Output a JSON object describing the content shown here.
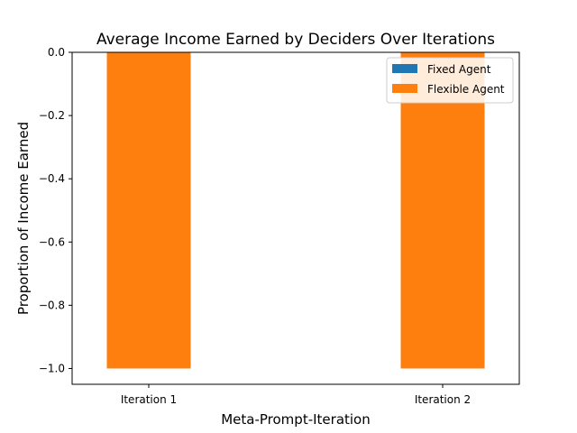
{
  "chart_data": {
    "type": "bar",
    "title": "Average Income Earned by Deciders Over Iterations",
    "xlabel": "Meta-Prompt-Iteration",
    "ylabel": "Proportion of Income Earned",
    "categories": [
      "Iteration 1",
      "Iteration 2"
    ],
    "series": [
      {
        "name": "Fixed Agent",
        "color": "#1f77b4",
        "values": [
          0.0,
          0.0
        ]
      },
      {
        "name": "Flexible Agent",
        "color": "#ff7f0e",
        "values": [
          -1.0,
          -1.0
        ]
      }
    ],
    "ylim": [
      -1.05,
      0.0
    ],
    "yticks": [
      0.0,
      -0.2,
      -0.4,
      -0.6,
      -0.8,
      -1.0
    ],
    "ytick_labels": [
      "0.0",
      "−0.2",
      "−0.4",
      "−0.6",
      "−0.8",
      "−1.0"
    ],
    "legend_position": "top-right",
    "grid": false
  }
}
